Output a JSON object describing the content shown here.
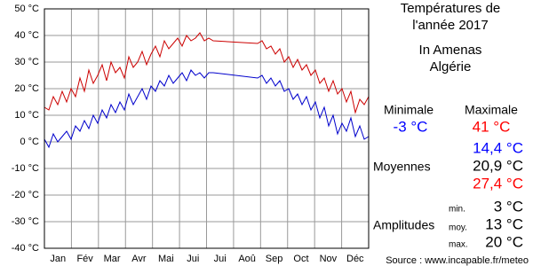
{
  "chart_data": {
    "type": "line",
    "title_lines": [
      "Températures de",
      "l'année 2017"
    ],
    "location": [
      "In Amenas",
      "Algérie"
    ],
    "categories": [
      "Jan",
      "Fév",
      "Mar",
      "Avr",
      "Mai",
      "Jui",
      "Jui",
      "Aoû",
      "Sep",
      "Oct",
      "Nov",
      "Déc"
    ],
    "x": [
      0,
      5,
      10,
      15,
      20,
      25,
      30,
      35,
      40,
      45,
      50,
      55,
      60,
      65,
      70,
      75,
      80,
      85,
      90,
      95,
      100,
      105,
      110,
      115,
      120,
      125,
      130,
      135,
      140,
      145,
      150,
      155,
      160,
      165,
      170,
      175,
      180,
      185,
      190,
      240,
      245,
      250,
      255,
      260,
      265,
      270,
      275,
      280,
      285,
      290,
      295,
      300,
      305,
      310,
      315,
      320,
      325,
      330,
      335,
      340,
      345,
      350,
      355,
      360,
      365
    ],
    "xlim": [
      0,
      365
    ],
    "series": [
      {
        "color": "#cc0000",
        "values": [
          13,
          12,
          17,
          14,
          19,
          15,
          20,
          17,
          24,
          19,
          27,
          22,
          25,
          29,
          23,
          30,
          26,
          28,
          24,
          32,
          28,
          30,
          34,
          29,
          33,
          36,
          32,
          38,
          35,
          37,
          39,
          36,
          40,
          38,
          39,
          41,
          38,
          39,
          38,
          37,
          38,
          35,
          36,
          33,
          35,
          30,
          32,
          28,
          31,
          27,
          29,
          25,
          27,
          22,
          24,
          19,
          23,
          18,
          20,
          15,
          19,
          11,
          16,
          14,
          17
        ]
      },
      {
        "color": "#0000cc",
        "values": [
          1,
          -2,
          3,
          0,
          2,
          4,
          1,
          6,
          4,
          8,
          5,
          10,
          7,
          12,
          9,
          14,
          11,
          15,
          12,
          18,
          14,
          17,
          20,
          16,
          21,
          19,
          23,
          21,
          25,
          22,
          24,
          26,
          23,
          27,
          25,
          26,
          24,
          26,
          26,
          24,
          25,
          22,
          24,
          21,
          23,
          19,
          20,
          16,
          18,
          14,
          17,
          12,
          15,
          9,
          13,
          6,
          10,
          3,
          7,
          4,
          9,
          2,
          6,
          1,
          2
        ]
      }
    ],
    "ylim": [
      -40,
      50
    ],
    "yticks": [
      {
        "value": -40,
        "label": "-40 °C"
      },
      {
        "value": -30,
        "label": "-30 °C"
      },
      {
        "value": -20,
        "label": "-20 °C"
      },
      {
        "value": -10,
        "label": "-10 °C"
      },
      {
        "value": 0,
        "label": "0 °C"
      },
      {
        "value": 10,
        "label": "10 °C"
      },
      {
        "value": 20,
        "label": "20 °C"
      },
      {
        "value": 30,
        "label": "30 °C"
      },
      {
        "value": 40,
        "label": "40 °C"
      },
      {
        "value": 50,
        "label": "50 °C"
      }
    ],
    "grid": true,
    "summary": {
      "minimale_label": "Minimale",
      "maximale_label": "Maximale",
      "min": "-3 °C",
      "max": "41 °C",
      "moyennes_label": "Moyennes",
      "moyennes": [
        "14,4 °C",
        "20,9 °C",
        "27,4 °C"
      ],
      "amplitudes_label": "Amplitudes",
      "amplitudes": [
        {
          "label": "min.",
          "value": "3 °C"
        },
        {
          "label": "moy.",
          "value": "13 °C"
        },
        {
          "label": "max.",
          "value": "20 °C"
        }
      ]
    },
    "source": "Source : www.incapable.fr/meteo"
  }
}
